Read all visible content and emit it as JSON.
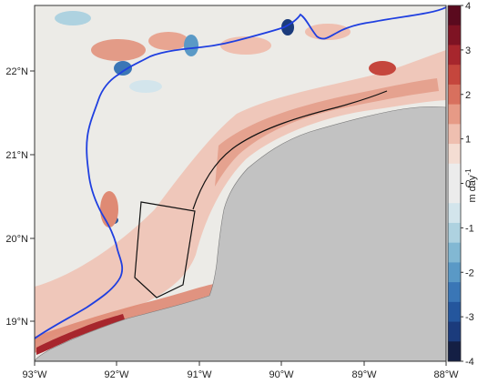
{
  "map": {
    "x_ticks": [
      "93°W",
      "92°W",
      "91°W",
      "90°W",
      "89°W",
      "88°W"
    ],
    "y_ticks": [
      "22°N",
      "21°N",
      "20°N",
      "19°N"
    ],
    "colors": {
      "land": "#c2c2c2",
      "coastline": "#7a7a7a",
      "blue_contour": "#1f3fe0",
      "black_line": "#111111",
      "neutral_water": "#eceae6"
    }
  },
  "colorbar": {
    "ticks": [
      "4",
      "3",
      "2",
      "1",
      "0",
      "-1",
      "-2",
      "-3",
      "-4"
    ],
    "unit_base": "m day",
    "unit_exp": "-1",
    "colors": [
      "#5a0a1e",
      "#7e1323",
      "#a7262d",
      "#c5463d",
      "#d8705e",
      "#e69a86",
      "#efbfb0",
      "#f4ddd3",
      "#ececec",
      "#ececec",
      "#d3e5ec",
      "#aed2e0",
      "#82b8d3",
      "#5a99c6",
      "#3a76b6",
      "#24569d",
      "#1b3b7c",
      "#141f44"
    ]
  }
}
